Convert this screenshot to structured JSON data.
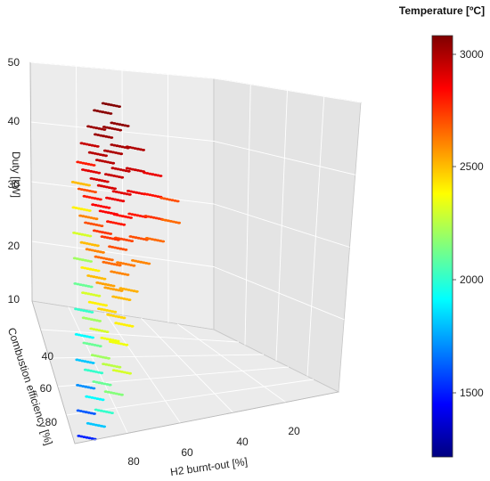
{
  "chart_data": {
    "type": "scatter",
    "title": "",
    "zlabel": "Duty [kW]",
    "ylabel": "Combustion efficiency [%]",
    "xlabel": "H2 burnt-out [%]",
    "duty_ticks": [
      "10",
      "20",
      "30",
      "40",
      "50"
    ],
    "efficiency_ticks": [
      "60",
      "80"
    ],
    "combustion_efficiency_ticks": [
      "40",
      "60",
      "80"
    ],
    "h2_ticks": [
      "80",
      "60",
      "40",
      "20"
    ],
    "zlim": [
      10,
      50
    ],
    "xlim": [
      0,
      100
    ],
    "ylim": [
      20,
      100
    ],
    "colorbar": {
      "title": "Temperature [ºC]",
      "ticks": [
        "3000",
        "2500",
        "2000",
        "1500"
      ],
      "range": [
        1200,
        3080
      ],
      "colors": [
        "#00007f",
        "#0000ff",
        "#007fff",
        "#00ffff",
        "#7fff7f",
        "#ffff00",
        "#ff7f00",
        "#ff0000",
        "#7f0000"
      ]
    },
    "series": [
      {
        "duty": 10,
        "h2_burnout": [
          95,
          90,
          85,
          78,
          70
        ],
        "efficiency": [
          98,
          92,
          85,
          75,
          62
        ],
        "temperature": [
          1500,
          1800,
          2000,
          2150,
          2300
        ]
      },
      {
        "duty": 14,
        "h2_burnout": [
          95,
          90,
          85,
          78,
          70,
          62
        ],
        "efficiency": [
          97,
          90,
          82,
          72,
          58,
          45
        ],
        "temperature": [
          1600,
          1900,
          2100,
          2250,
          2350,
          2400
        ]
      },
      {
        "duty": 18,
        "h2_burnout": [
          95,
          90,
          85,
          78,
          70,
          62,
          55
        ],
        "efficiency": [
          96,
          88,
          80,
          70,
          55,
          42,
          35
        ],
        "temperature": [
          1700,
          2000,
          2200,
          2350,
          2450,
          2500,
          2520
        ]
      },
      {
        "duty": 22,
        "h2_burnout": [
          95,
          90,
          85,
          78,
          70,
          62,
          55,
          45
        ],
        "efficiency": [
          95,
          86,
          78,
          66,
          52,
          40,
          32,
          28
        ],
        "temperature": [
          1800,
          2100,
          2300,
          2450,
          2550,
          2600,
          2620,
          2600
        ]
      },
      {
        "duty": 26,
        "h2_burnout": [
          95,
          90,
          85,
          78,
          70,
          62,
          55,
          45,
          35
        ],
        "efficiency": [
          94,
          85,
          76,
          64,
          50,
          38,
          30,
          26,
          24
        ],
        "temperature": [
          1900,
          2200,
          2400,
          2550,
          2650,
          2700,
          2720,
          2700,
          2650
        ]
      },
      {
        "duty": 30,
        "h2_burnout": [
          95,
          90,
          85,
          78,
          70,
          62,
          55,
          45,
          35,
          25
        ],
        "efficiency": [
          93,
          84,
          74,
          62,
          48,
          36,
          29,
          25,
          23,
          22
        ],
        "temperature": [
          2000,
          2300,
          2500,
          2650,
          2750,
          2800,
          2820,
          2800,
          2750,
          2650
        ]
      },
      {
        "duty": 34,
        "h2_burnout": [
          95,
          90,
          85,
          78,
          70,
          62,
          55,
          45,
          35,
          25
        ],
        "efficiency": [
          92,
          83,
          72,
          60,
          46,
          35,
          28,
          24,
          22,
          21
        ],
        "temperature": [
          2100,
          2400,
          2600,
          2750,
          2850,
          2880,
          2900,
          2880,
          2820,
          2700
        ]
      },
      {
        "duty": 38,
        "h2_burnout": [
          95,
          90,
          85,
          78,
          70,
          62,
          55,
          45,
          35
        ],
        "efficiency": [
          91,
          82,
          70,
          58,
          44,
          34,
          27,
          23,
          22
        ],
        "temperature": [
          2200,
          2500,
          2700,
          2850,
          2920,
          2950,
          2960,
          2940,
          2880
        ]
      },
      {
        "duty": 42,
        "h2_burnout": [
          95,
          90,
          85,
          78,
          70,
          62,
          55,
          45
        ],
        "efficiency": [
          90,
          80,
          68,
          56,
          42,
          33,
          26,
          23
        ],
        "temperature": [
          2300,
          2600,
          2800,
          2920,
          2980,
          3000,
          3010,
          2990
        ]
      },
      {
        "duty": 46,
        "h2_burnout": [
          95,
          90,
          85,
          78,
          70,
          62,
          55
        ],
        "efficiency": [
          89,
          78,
          66,
          54,
          40,
          32,
          26
        ],
        "temperature": [
          2400,
          2700,
          2900,
          2980,
          3030,
          3040,
          3050
        ]
      },
      {
        "duty": 50,
        "h2_burnout": [
          95,
          90,
          85,
          78,
          70,
          62
        ],
        "efficiency": [
          88,
          76,
          64,
          52,
          39,
          31
        ],
        "temperature": [
          2500,
          2800,
          2950,
          3030,
          3060,
          3070
        ]
      }
    ]
  }
}
